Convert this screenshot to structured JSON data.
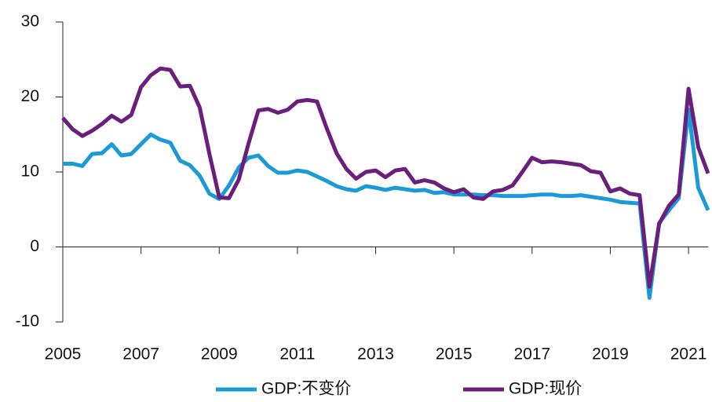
{
  "chart_data": {
    "type": "line",
    "x": [
      2005,
      2005.25,
      2005.5,
      2005.75,
      2006,
      2006.25,
      2006.5,
      2006.75,
      2007,
      2007.25,
      2007.5,
      2007.75,
      2008,
      2008.25,
      2008.5,
      2008.75,
      2009,
      2009.25,
      2009.5,
      2009.75,
      2010,
      2010.25,
      2010.5,
      2010.75,
      2011,
      2011.25,
      2011.5,
      2011.75,
      2012,
      2012.25,
      2012.5,
      2012.75,
      2013,
      2013.25,
      2013.5,
      2013.75,
      2014,
      2014.25,
      2014.5,
      2014.75,
      2015,
      2015.25,
      2015.5,
      2015.75,
      2016,
      2016.25,
      2016.5,
      2016.75,
      2017,
      2017.25,
      2017.5,
      2017.75,
      2018,
      2018.25,
      2018.5,
      2018.75,
      2019,
      2019.25,
      2019.5,
      2019.75,
      2020,
      2020.25,
      2020.5,
      2020.75,
      2021,
      2021.25,
      2021.5
    ],
    "series": [
      {
        "name": "GDP:不变价",
        "color": "#1b9ad8",
        "values": [
          11.1,
          11.1,
          10.8,
          12.4,
          12.5,
          13.7,
          12.2,
          12.4,
          13.7,
          15.0,
          14.3,
          13.9,
          11.5,
          10.9,
          9.5,
          7.1,
          6.4,
          8.2,
          10.6,
          11.9,
          12.2,
          10.8,
          9.9,
          9.9,
          10.2,
          10.0,
          9.4,
          8.8,
          8.1,
          7.7,
          7.5,
          8.1,
          7.9,
          7.6,
          7.9,
          7.7,
          7.5,
          7.6,
          7.2,
          7.3,
          7.0,
          7.0,
          7.0,
          6.9,
          6.9,
          6.8,
          6.8,
          6.8,
          6.9,
          7.0,
          7.0,
          6.8,
          6.8,
          6.9,
          6.7,
          6.5,
          6.3,
          6.0,
          5.9,
          5.8,
          -6.8,
          3.2,
          4.9,
          6.5,
          18.3,
          7.9,
          4.9
        ]
      },
      {
        "name": "GDP:现价",
        "color": "#6b1f7c",
        "values": [
          17.2,
          15.7,
          14.8,
          15.5,
          16.4,
          17.5,
          16.7,
          17.6,
          21.3,
          22.9,
          23.8,
          23.6,
          21.4,
          21.5,
          18.6,
          12.4,
          6.6,
          6.5,
          9.0,
          13.8,
          18.2,
          18.4,
          17.9,
          18.3,
          19.4,
          19.6,
          19.4,
          15.8,
          12.5,
          10.4,
          9.1,
          10.0,
          10.2,
          9.3,
          10.2,
          10.4,
          8.6,
          8.9,
          8.6,
          7.8,
          7.3,
          7.7,
          6.6,
          6.4,
          7.4,
          7.6,
          8.2,
          10.0,
          11.9,
          11.3,
          11.4,
          11.3,
          11.1,
          10.9,
          10.1,
          9.9,
          7.4,
          7.8,
          7.1,
          6.9,
          -5.3,
          3.1,
          5.5,
          7.0,
          21.1,
          13.3,
          9.8
        ]
      }
    ],
    "xlim": [
      2005,
      2021.5
    ],
    "xticks": [
      2005,
      2007,
      2009,
      2011,
      2013,
      2015,
      2017,
      2019,
      2021
    ],
    "ylim": [
      -10,
      30
    ],
    "yticks": [
      -10,
      0,
      10,
      20,
      30
    ],
    "legend": "bottom"
  }
}
